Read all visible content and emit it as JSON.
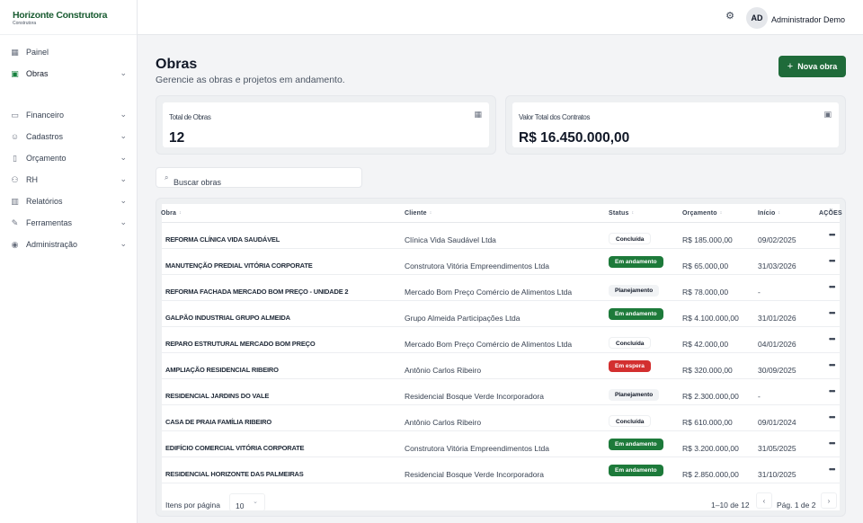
{
  "brand": {
    "name": "Horizonte Construtora",
    "sub": "Construtora"
  },
  "sidebar": {
    "items": [
      {
        "label": "Painel",
        "icon": "grid-icon"
      },
      {
        "label": "Obras",
        "icon": "building-icon"
      },
      {
        "label": "Financeiro",
        "icon": "wallet-icon"
      },
      {
        "label": "Cadastros",
        "icon": "users-icon"
      },
      {
        "label": "Orçamento",
        "icon": "document-icon"
      },
      {
        "label": "RH",
        "icon": "person-group-icon"
      },
      {
        "label": "Relatórios",
        "icon": "bar-chart-icon"
      },
      {
        "label": "Ferramentas",
        "icon": "wrench-icon"
      },
      {
        "label": "Administração",
        "icon": "shield-icon"
      }
    ]
  },
  "topbar": {
    "avatar": "AD",
    "user": "Administrador Demo"
  },
  "header": {
    "title": "Obras",
    "subtitle": "Gerencie as obras e projetos em andamento.",
    "new_button": "Nova obra"
  },
  "stats": {
    "total_label": "Total de Obras",
    "total_value": "12",
    "contracts_label": "Valor Total dos Contratos",
    "contracts_value": "R$ 16.450.000,00"
  },
  "search": {
    "placeholder": "Buscar obras"
  },
  "table": {
    "headers": {
      "obra": "Obra",
      "cliente": "Cliente",
      "status": "Status",
      "orcamento": "Orçamento",
      "inicio": "Início",
      "acoes": "AÇÕES"
    },
    "rows": [
      {
        "obra": "REFORMA CLÍNICA VIDA SAUDÁVEL",
        "cliente": "Clínica Vida Saudável Ltda",
        "status": "Concluída",
        "orcamento": "R$ 185.000,00",
        "inicio": "09/02/2025"
      },
      {
        "obra": "MANUTENÇÃO PREDIAL VITÓRIA CORPORATE",
        "cliente": "Construtora Vitória Empreendimentos Ltda",
        "status": "Em andamento",
        "orcamento": "R$ 65.000,00",
        "inicio": "31/03/2026"
      },
      {
        "obra": "REFORMA FACHADA MERCADO BOM PREÇO - UNIDADE 2",
        "cliente": "Mercado Bom Preço Comércio de Alimentos Ltda",
        "status": "Planejamento",
        "orcamento": "R$ 78.000,00",
        "inicio": "-"
      },
      {
        "obra": "GALPÃO INDUSTRIAL GRUPO ALMEIDA",
        "cliente": "Grupo Almeida Participações Ltda",
        "status": "Em andamento",
        "orcamento": "R$ 4.100.000,00",
        "inicio": "31/01/2026"
      },
      {
        "obra": "REPARO ESTRUTURAL MERCADO BOM PREÇO",
        "cliente": "Mercado Bom Preço Comércio de Alimentos Ltda",
        "status": "Concluída",
        "orcamento": "R$ 42.000,00",
        "inicio": "04/01/2026"
      },
      {
        "obra": "AMPLIAÇÃO RESIDENCIAL RIBEIRO",
        "cliente": "Antônio Carlos Ribeiro",
        "status": "Em espera",
        "orcamento": "R$ 320.000,00",
        "inicio": "30/09/2025"
      },
      {
        "obra": "RESIDENCIAL JARDINS DO VALE",
        "cliente": "Residencial Bosque Verde Incorporadora",
        "status": "Planejamento",
        "orcamento": "R$ 2.300.000,00",
        "inicio": "-"
      },
      {
        "obra": "CASA DE PRAIA FAMÍLIA RIBEIRO",
        "cliente": "Antônio Carlos Ribeiro",
        "status": "Concluída",
        "orcamento": "R$ 610.000,00",
        "inicio": "09/01/2024"
      },
      {
        "obra": "EDIFÍCIO COMERCIAL VITÓRIA CORPORATE",
        "cliente": "Construtora Vitória Empreendimentos Ltda",
        "status": "Em andamento",
        "orcamento": "R$ 3.200.000,00",
        "inicio": "31/05/2025"
      },
      {
        "obra": "RESIDENCIAL HORIZONTE DAS PALMEIRAS",
        "cliente": "Residencial Bosque Verde Incorporadora",
        "status": "Em andamento",
        "orcamento": "R$ 2.850.000,00",
        "inicio": "31/10/2025"
      }
    ]
  },
  "pagination": {
    "per_page_label": "Itens por página",
    "per_page": "10",
    "range": "1–10 de 12",
    "page": "Pág. 1 de 2"
  },
  "colors": {
    "primary": "#1f6b3a",
    "in_progress": "#1d7a3a",
    "waiting": "#d32f2f"
  }
}
